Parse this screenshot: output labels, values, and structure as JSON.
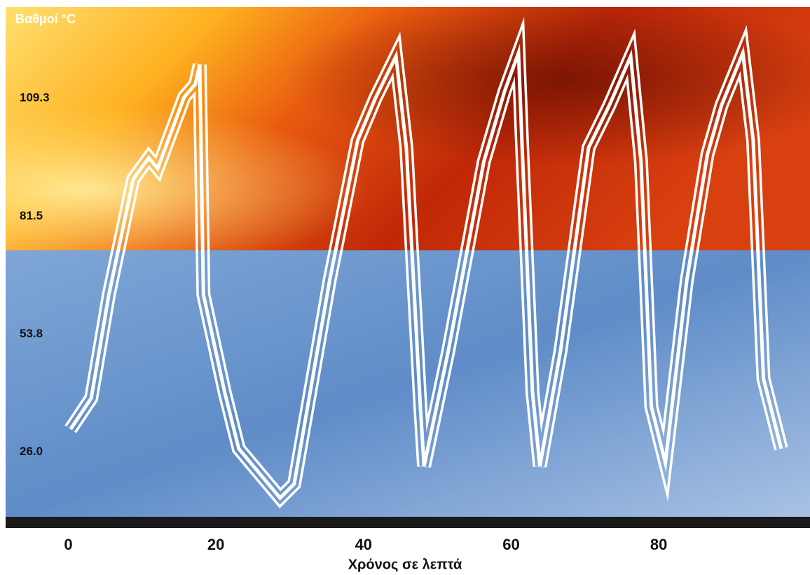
{
  "chart_data": {
    "type": "line",
    "title": "Βαθμοί  °C",
    "x_label": "Χρόνος σε λεπτά",
    "x": [
      0.3,
      3.1,
      5.5,
      8.8,
      10.9,
      12.1,
      15.7,
      17.2,
      17.8,
      18.3,
      21.2,
      23.1,
      28.7,
      30.6,
      35.4,
      39.2,
      41.6,
      44.4,
      45.8,
      47.7,
      48.2,
      51.5,
      56.3,
      59.1,
      61.0,
      61.5,
      62.9,
      63.9,
      66.7,
      70.5,
      73.3,
      76.2,
      77.6,
      79.0,
      80.9,
      83.8,
      86.6,
      88.5,
      91.4,
      92.8,
      94.2,
      96.6
    ],
    "series": [
      {
        "color": "#ffffff",
        "values": [
          31.4,
          38.7,
          63.1,
          90.3,
          95.3,
          92.8,
          109.6,
          112.6,
          117.2,
          63.1,
          40.0,
          26.8,
          15.2,
          18.5,
          66.4,
          99.4,
          109.3,
          119.2,
          97.7,
          36.7,
          22.7,
          49.9,
          94.4,
          110.9,
          120.0,
          97.7,
          40.0,
          22.7,
          49.9,
          97.7,
          107.6,
          119.2,
          94.4,
          36.7,
          23.5,
          66.4,
          96.1,
          107.6,
          120.0,
          99.4,
          43.3,
          26.8
        ]
      }
    ],
    "xlim": [
      -8.5,
      100.5
    ],
    "xticks": [
      0,
      20,
      40,
      60,
      80
    ],
    "ylim": [
      11.1,
      130.8
    ],
    "yticks": [
      {
        "value": 26,
        "label": "26.0"
      },
      53.8,
      81.5,
      109.3
    ]
  }
}
